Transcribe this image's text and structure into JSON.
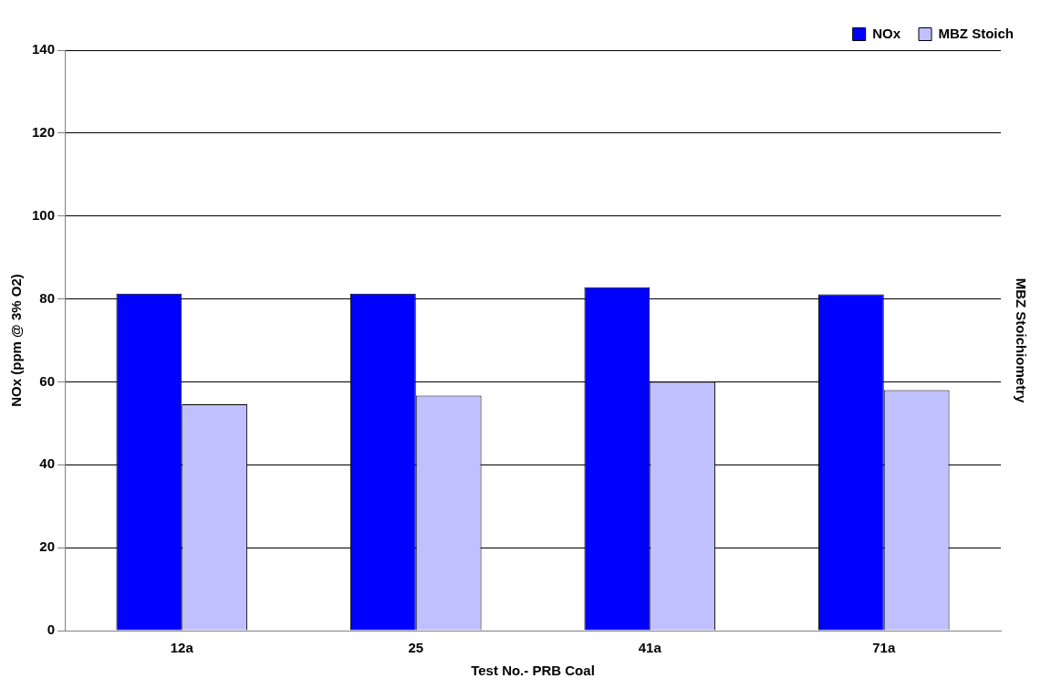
{
  "chart_data": {
    "type": "bar",
    "xlabel": "Test No.- PRB Coal",
    "ylabel": "NOx (ppm @ 3% O2)",
    "y2label": "MBZ Stoichiometry",
    "categories": [
      "12a",
      "25",
      "41a",
      "71a"
    ],
    "series": [
      {
        "name": "NOx",
        "color": "#0000ff",
        "values": [
          81.3,
          81.3,
          82.8,
          81.1
        ]
      },
      {
        "name": "MBZ Stoich",
        "color": "#c0c0ff",
        "values": [
          54.6,
          56.7,
          60,
          58
        ]
      }
    ],
    "ylim": [
      0,
      140
    ],
    "yticks": [
      0,
      20,
      40,
      60,
      80,
      100,
      120,
      140
    ],
    "grid": "y",
    "legend": "top right"
  }
}
